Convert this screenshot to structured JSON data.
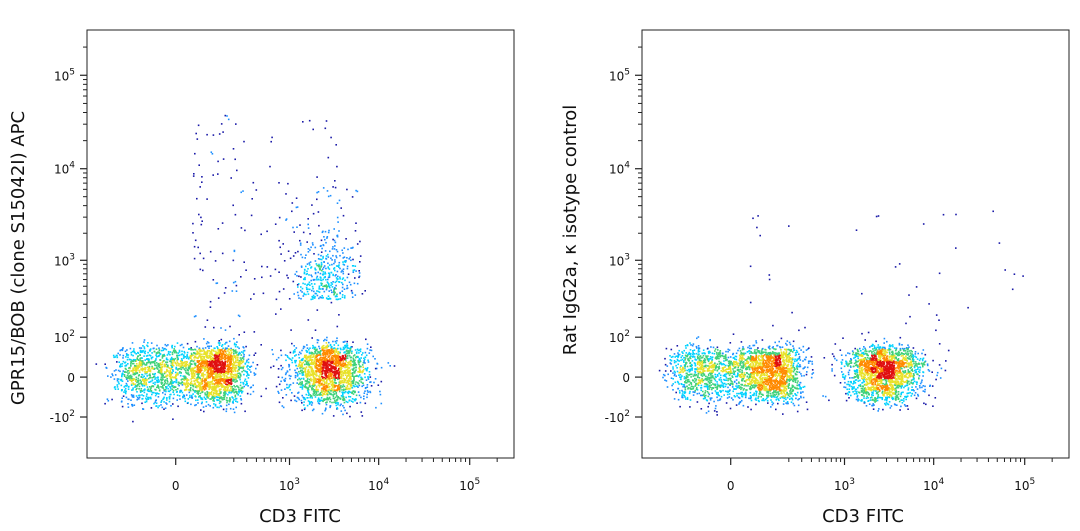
{
  "chart_data": [
    {
      "type": "scatter",
      "subtype": "flow-cytometry-density-dot-plot",
      "xlabel": "CD3 FITC",
      "ylabel": "GPR15/BOB (clone S15042I) APC",
      "x_scale": "biexponential",
      "y_scale": "biexponential",
      "x_ticks": [
        {
          "value": 0,
          "base": "0",
          "exp": ""
        },
        {
          "value": 1000,
          "base": "10",
          "exp": "3"
        },
        {
          "value": 10000,
          "base": "10",
          "exp": "4"
        },
        {
          "value": 100000,
          "base": "10",
          "exp": "5"
        }
      ],
      "y_ticks": [
        {
          "value": -100,
          "base": "-10",
          "exp": "2"
        },
        {
          "value": 0,
          "base": "0",
          "exp": ""
        },
        {
          "value": 100,
          "base": "10",
          "exp": "2"
        },
        {
          "value": 1000,
          "base": "10",
          "exp": "3"
        },
        {
          "value": 10000,
          "base": "10",
          "exp": "4"
        },
        {
          "value": 100000,
          "base": "10",
          "exp": "5"
        }
      ],
      "xlim": [
        -400,
        250000
      ],
      "ylim": [
        -300,
        250000
      ],
      "populations": [
        {
          "name": "",
          "x_center": 50,
          "y_center": 10,
          "x_spread": 110,
          "y_spread": 30,
          "count": 2600
        },
        {
          "name": "",
          "x_center": 2800,
          "y_center": 10,
          "x_spread": 0.22,
          "y_spread": 30,
          "count": 1800
        },
        {
          "name": "",
          "x_center": 2500,
          "y_center": 350,
          "x_spread": 0.18,
          "y_spread": 0.45,
          "count": 420
        }
      ],
      "colormap": [
        "#1a1aa8",
        "#1e90ff",
        "#00d2ff",
        "#3fd17a",
        "#e8e22a",
        "#ff8a00",
        "#e01010"
      ]
    },
    {
      "type": "scatter",
      "subtype": "flow-cytometry-density-dot-plot",
      "xlabel": "CD3 FITC",
      "ylabel": "Rat IgG2a, κ isotype control",
      "x_scale": "biexponential",
      "y_scale": "biexponential",
      "x_ticks": [
        {
          "value": 0,
          "base": "0",
          "exp": ""
        },
        {
          "value": 1000,
          "base": "10",
          "exp": "3"
        },
        {
          "value": 10000,
          "base": "10",
          "exp": "4"
        },
        {
          "value": 100000,
          "base": "10",
          "exp": "5"
        }
      ],
      "y_ticks": [
        {
          "value": -100,
          "base": "-10",
          "exp": "2"
        },
        {
          "value": 0,
          "base": "0",
          "exp": ""
        },
        {
          "value": 100,
          "base": "10",
          "exp": "2"
        },
        {
          "value": 1000,
          "base": "10",
          "exp": "3"
        },
        {
          "value": 10000,
          "base": "10",
          "exp": "4"
        },
        {
          "value": 100000,
          "base": "10",
          "exp": "5"
        }
      ],
      "xlim": [
        -400,
        250000
      ],
      "ylim": [
        -300,
        250000
      ],
      "populations": [
        {
          "name": "",
          "x_center": 50,
          "y_center": 10,
          "x_spread": 110,
          "y_spread": 28,
          "count": 2400
        },
        {
          "name": "",
          "x_center": 2800,
          "y_center": 10,
          "x_spread": 0.22,
          "y_spread": 28,
          "count": 1800
        }
      ],
      "colormap": [
        "#1a1aa8",
        "#1e90ff",
        "#00d2ff",
        "#3fd17a",
        "#e8e22a",
        "#ff8a00",
        "#e01010"
      ]
    }
  ]
}
